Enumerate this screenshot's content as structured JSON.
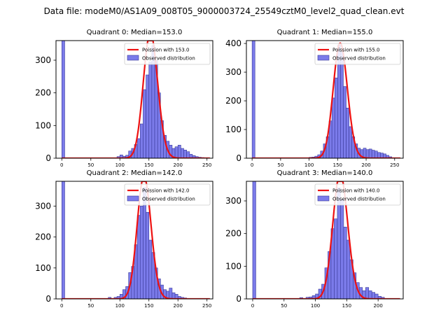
{
  "figure_title": "Data file: modeM0/AS1A09_008T05_9000003724_25549cztM0_level2_quad_clean.evt",
  "colors": {
    "bar_fill": "#7b7bea",
    "bar_edge": "#3a3a9a",
    "poisson": "#ee1111",
    "axis": "#000000"
  },
  "chart_data": [
    {
      "type": "bar",
      "title": "Quadrant 0: Median=153.0",
      "median": 153.0,
      "xlim": [
        -10,
        260
      ],
      "ylim": [
        0,
        360
      ],
      "xticks": [
        0,
        50,
        100,
        150,
        200,
        250
      ],
      "yticks": [
        0,
        100,
        200,
        300
      ],
      "legend": {
        "position": "top-right",
        "line_label": "Poission with 153.0",
        "bar_label": "Observed distribution"
      },
      "bin_width": 5,
      "bins": [
        [
          0,
          500
        ],
        [
          95,
          5
        ],
        [
          100,
          10
        ],
        [
          105,
          6
        ],
        [
          110,
          9
        ],
        [
          115,
          22
        ],
        [
          120,
          30
        ],
        [
          125,
          42
        ],
        [
          130,
          60
        ],
        [
          135,
          105
        ],
        [
          140,
          210
        ],
        [
          145,
          255
        ],
        [
          150,
          295
        ],
        [
          155,
          345
        ],
        [
          160,
          300
        ],
        [
          165,
          200
        ],
        [
          170,
          115
        ],
        [
          175,
          70
        ],
        [
          180,
          52
        ],
        [
          185,
          40
        ],
        [
          190,
          30
        ],
        [
          195,
          35
        ],
        [
          200,
          40
        ],
        [
          205,
          30
        ],
        [
          210,
          25
        ],
        [
          215,
          20
        ],
        [
          220,
          12
        ],
        [
          225,
          8
        ],
        [
          230,
          5
        ],
        [
          235,
          3
        ],
        [
          240,
          2
        ]
      ]
    },
    {
      "type": "bar",
      "title": "Quadrant 1: Median=155.0",
      "median": 155.0,
      "xlim": [
        -10,
        265
      ],
      "ylim": [
        0,
        410
      ],
      "xticks": [
        0,
        50,
        100,
        150,
        200,
        250
      ],
      "yticks": [
        0,
        100,
        200,
        300,
        400
      ],
      "legend": {
        "position": "top-right",
        "line_label": "Poission with 155.0",
        "bar_label": "Observed distribution"
      },
      "bin_width": 5,
      "bins": [
        [
          0,
          500
        ],
        [
          100,
          3
        ],
        [
          105,
          4
        ],
        [
          110,
          7
        ],
        [
          115,
          12
        ],
        [
          120,
          25
        ],
        [
          125,
          50
        ],
        [
          130,
          75
        ],
        [
          135,
          130
        ],
        [
          140,
          210
        ],
        [
          145,
          280
        ],
        [
          150,
          395
        ],
        [
          155,
          370
        ],
        [
          160,
          250
        ],
        [
          165,
          175
        ],
        [
          170,
          110
        ],
        [
          175,
          75
        ],
        [
          180,
          50
        ],
        [
          185,
          35
        ],
        [
          190,
          30
        ],
        [
          195,
          35
        ],
        [
          200,
          30
        ],
        [
          205,
          32
        ],
        [
          210,
          28
        ],
        [
          215,
          25
        ],
        [
          220,
          20
        ],
        [
          225,
          18
        ],
        [
          230,
          15
        ],
        [
          235,
          10
        ],
        [
          240,
          5
        ]
      ]
    },
    {
      "type": "bar",
      "title": "Quadrant 2: Median=142.0",
      "median": 142.0,
      "xlim": [
        -10,
        260
      ],
      "ylim": [
        0,
        380
      ],
      "xticks": [
        0,
        50,
        100,
        150,
        200,
        250
      ],
      "yticks": [
        0,
        100,
        200,
        300
      ],
      "legend": {
        "position": "top-right",
        "line_label": "Poission with 142.0",
        "bar_label": "Observed distribution"
      },
      "bin_width": 5,
      "bins": [
        [
          0,
          500
        ],
        [
          80,
          5
        ],
        [
          90,
          5
        ],
        [
          95,
          8
        ],
        [
          100,
          15
        ],
        [
          105,
          30
        ],
        [
          110,
          40
        ],
        [
          115,
          85
        ],
        [
          120,
          105
        ],
        [
          125,
          175
        ],
        [
          130,
          270
        ],
        [
          135,
          300
        ],
        [
          140,
          360
        ],
        [
          145,
          280
        ],
        [
          150,
          190
        ],
        [
          155,
          150
        ],
        [
          160,
          100
        ],
        [
          165,
          65
        ],
        [
          170,
          45
        ],
        [
          175,
          30
        ],
        [
          180,
          25
        ],
        [
          185,
          35
        ],
        [
          190,
          20
        ],
        [
          195,
          15
        ],
        [
          200,
          8
        ],
        [
          205,
          5
        ],
        [
          210,
          3
        ]
      ]
    },
    {
      "type": "bar",
      "title": "Quadrant 3: Median=140.0",
      "median": 140.0,
      "xlim": [
        -10,
        240
      ],
      "ylim": [
        0,
        360
      ],
      "xticks": [
        0,
        50,
        100,
        150,
        200
      ],
      "yticks": [
        0,
        100,
        200,
        300
      ],
      "legend": {
        "position": "top-right",
        "line_label": "Poission with 140.0",
        "bar_label": "Observed distribution"
      },
      "bin_width": 5,
      "bins": [
        [
          0,
          500
        ],
        [
          75,
          4
        ],
        [
          85,
          5
        ],
        [
          90,
          6
        ],
        [
          95,
          10
        ],
        [
          100,
          15
        ],
        [
          105,
          30
        ],
        [
          110,
          45
        ],
        [
          115,
          95
        ],
        [
          120,
          145
        ],
        [
          125,
          215
        ],
        [
          130,
          245
        ],
        [
          135,
          340
        ],
        [
          140,
          305
        ],
        [
          145,
          220
        ],
        [
          150,
          180
        ],
        [
          155,
          120
        ],
        [
          160,
          80
        ],
        [
          165,
          50
        ],
        [
          170,
          35
        ],
        [
          175,
          25
        ],
        [
          180,
          35
        ],
        [
          185,
          25
        ],
        [
          190,
          20
        ],
        [
          195,
          15
        ],
        [
          200,
          8
        ],
        [
          205,
          5
        ]
      ]
    }
  ]
}
